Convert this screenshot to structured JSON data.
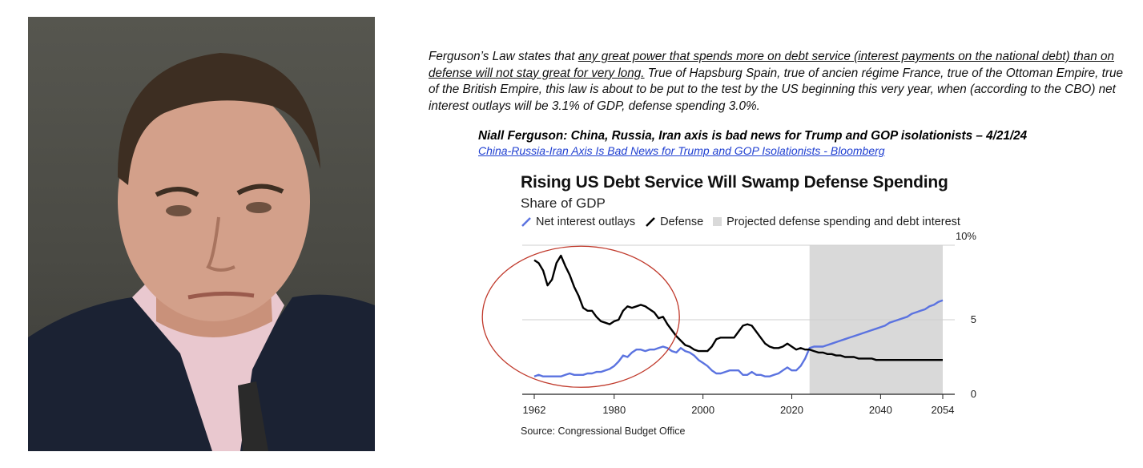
{
  "quote": {
    "part1": "Ferguson’s Law states that ",
    "underlined": "any great power that spends more on debt service (interest payments on the national debt) than on defense will not stay great for very long.",
    "part2": " True of Hapsburg Spain, true of ancien régime France, true of the Ottoman Empire, true of the British Empire, this law is about to be put to the test by the US beginning this very year, when (according to the CBO) net interest outlays will be 3.1% of GDP, defense spending 3.0%."
  },
  "headline": "Niall Ferguson: China, Russia, Iran axis is bad news for Trump and GOP isolationists – 4/21/24",
  "link_text": "China-Russia-Iran Axis Is Bad News for Trump and GOP Isolationists - Bloomberg",
  "colors": {
    "interest": "#5b73e0",
    "defense": "#000000",
    "projection": "#d9d9d9",
    "circle": "#c0392b",
    "link": "#1f3fd1"
  },
  "chart_data": {
    "type": "line",
    "title": "Rising US Debt Service Will Swamp Defense Spending",
    "subtitle": "Share of GDP",
    "source": "Source: Congressional Budget Office",
    "legend": {
      "interest": "Net interest outlays",
      "defense": "Defense",
      "projection": "Projected defense spending and debt interest"
    },
    "legend_placement": "top-left",
    "x_ticks": [
      "1962",
      "1980",
      "2000",
      "2020",
      "2040",
      "2054"
    ],
    "y_ticks": [
      "0",
      "5",
      "10%"
    ],
    "xlim": [
      1962,
      2054
    ],
    "ylim": [
      0,
      10
    ],
    "grid": true,
    "projection_range": [
      2024,
      2054
    ],
    "series": [
      {
        "name": "Net interest outlays",
        "key": "interest",
        "x": [
          1962,
          1963,
          1964,
          1965,
          1966,
          1967,
          1968,
          1969,
          1970,
          1971,
          1972,
          1973,
          1974,
          1975,
          1976,
          1977,
          1978,
          1979,
          1980,
          1981,
          1982,
          1983,
          1984,
          1985,
          1986,
          1987,
          1988,
          1989,
          1990,
          1991,
          1992,
          1993,
          1994,
          1995,
          1996,
          1997,
          1998,
          1999,
          2000,
          2001,
          2002,
          2003,
          2004,
          2005,
          2006,
          2007,
          2008,
          2009,
          2010,
          2011,
          2012,
          2013,
          2014,
          2015,
          2016,
          2017,
          2018,
          2019,
          2020,
          2021,
          2022,
          2023,
          2024,
          2025,
          2026,
          2027,
          2028,
          2029,
          2030,
          2031,
          2032,
          2033,
          2034,
          2035,
          2036,
          2037,
          2038,
          2039,
          2040,
          2041,
          2042,
          2043,
          2044,
          2045,
          2046,
          2047,
          2048,
          2049,
          2050,
          2051,
          2052,
          2053,
          2054
        ],
        "values": [
          1.2,
          1.3,
          1.2,
          1.2,
          1.2,
          1.2,
          1.2,
          1.3,
          1.4,
          1.3,
          1.3,
          1.3,
          1.4,
          1.4,
          1.5,
          1.5,
          1.6,
          1.7,
          1.9,
          2.2,
          2.6,
          2.5,
          2.8,
          3.0,
          3.0,
          2.9,
          3.0,
          3.0,
          3.1,
          3.2,
          3.1,
          2.9,
          2.8,
          3.1,
          2.9,
          2.8,
          2.6,
          2.3,
          2.1,
          1.9,
          1.6,
          1.4,
          1.4,
          1.5,
          1.6,
          1.6,
          1.6,
          1.3,
          1.3,
          1.5,
          1.3,
          1.3,
          1.2,
          1.2,
          1.3,
          1.4,
          1.6,
          1.8,
          1.6,
          1.6,
          1.9,
          2.4,
          3.1,
          3.2,
          3.2,
          3.2,
          3.3,
          3.4,
          3.5,
          3.6,
          3.7,
          3.8,
          3.9,
          4.0,
          4.1,
          4.2,
          4.3,
          4.4,
          4.5,
          4.6,
          4.8,
          4.9,
          5.0,
          5.1,
          5.2,
          5.4,
          5.5,
          5.6,
          5.7,
          5.9,
          6.0,
          6.2,
          6.3
        ]
      },
      {
        "name": "Defense",
        "key": "defense",
        "x": [
          1962,
          1963,
          1964,
          1965,
          1966,
          1967,
          1968,
          1969,
          1970,
          1971,
          1972,
          1973,
          1974,
          1975,
          1976,
          1977,
          1978,
          1979,
          1980,
          1981,
          1982,
          1983,
          1984,
          1985,
          1986,
          1987,
          1988,
          1989,
          1990,
          1991,
          1992,
          1993,
          1994,
          1995,
          1996,
          1997,
          1998,
          1999,
          2000,
          2001,
          2002,
          2003,
          2004,
          2005,
          2006,
          2007,
          2008,
          2009,
          2010,
          2011,
          2012,
          2013,
          2014,
          2015,
          2016,
          2017,
          2018,
          2019,
          2020,
          2021,
          2022,
          2023,
          2024,
          2025,
          2026,
          2027,
          2028,
          2029,
          2030,
          2031,
          2032,
          2033,
          2034,
          2035,
          2036,
          2037,
          2038,
          2039,
          2040,
          2041,
          2042,
          2043,
          2044,
          2045,
          2046,
          2047,
          2048,
          2049,
          2050,
          2051,
          2052,
          2053,
          2054
        ],
        "values": [
          9.0,
          8.8,
          8.3,
          7.3,
          7.7,
          8.8,
          9.3,
          8.6,
          8.0,
          7.2,
          6.6,
          5.8,
          5.6,
          5.6,
          5.2,
          4.9,
          4.8,
          4.7,
          4.9,
          5.0,
          5.6,
          5.9,
          5.8,
          5.9,
          6.0,
          5.9,
          5.7,
          5.5,
          5.1,
          5.2,
          4.7,
          4.3,
          3.9,
          3.6,
          3.3,
          3.2,
          3.0,
          2.9,
          2.9,
          2.9,
          3.2,
          3.7,
          3.8,
          3.8,
          3.8,
          3.8,
          4.2,
          4.6,
          4.7,
          4.6,
          4.2,
          3.8,
          3.4,
          3.2,
          3.1,
          3.1,
          3.2,
          3.4,
          3.2,
          3.0,
          3.1,
          3.0,
          3.0,
          2.9,
          2.8,
          2.8,
          2.7,
          2.7,
          2.6,
          2.6,
          2.5,
          2.5,
          2.5,
          2.4,
          2.4,
          2.4,
          2.4,
          2.3,
          2.3,
          2.3,
          2.3,
          2.3,
          2.3,
          2.3,
          2.3,
          2.3,
          2.3,
          2.3,
          2.3,
          2.3,
          2.3,
          2.3,
          2.3
        ]
      }
    ]
  }
}
